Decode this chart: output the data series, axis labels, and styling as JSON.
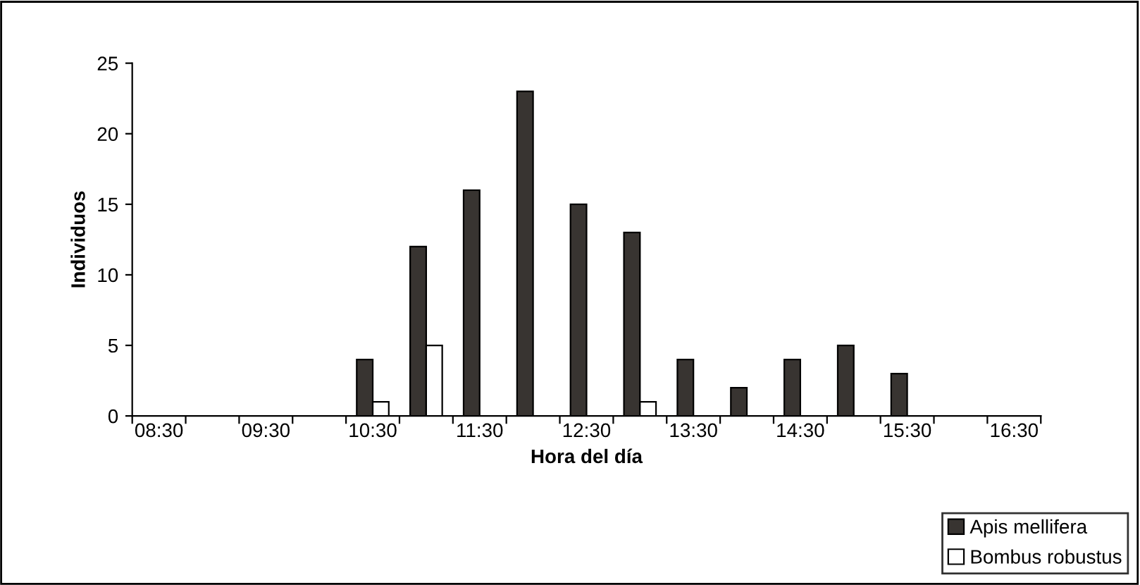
{
  "chart_data": {
    "type": "bar",
    "xlabel": "Hora del día",
    "ylabel": "Individuos",
    "categories": [
      "08:30",
      null,
      "09:30",
      null,
      "10:30",
      null,
      "11:30",
      null,
      "12:30",
      null,
      "13:30",
      null,
      "14:30",
      null,
      "15:30",
      null,
      "16:30"
    ],
    "series": [
      {
        "name": "Apis mellifera",
        "color": "#383431",
        "values": [
          0,
          0,
          0,
          0,
          4,
          12,
          16,
          23,
          15,
          13,
          4,
          2,
          4,
          5,
          3,
          0,
          0
        ]
      },
      {
        "name": "Bombus robustus",
        "color": "#ffffff",
        "values": [
          0,
          0,
          0,
          0,
          1,
          5,
          0,
          0,
          0,
          1,
          0,
          0,
          0,
          0,
          0,
          0,
          0
        ]
      }
    ],
    "ylim": [
      0,
      25
    ],
    "yticks": [
      0,
      5,
      10,
      15,
      20,
      25
    ],
    "grid": false,
    "legend": "bottom right"
  }
}
